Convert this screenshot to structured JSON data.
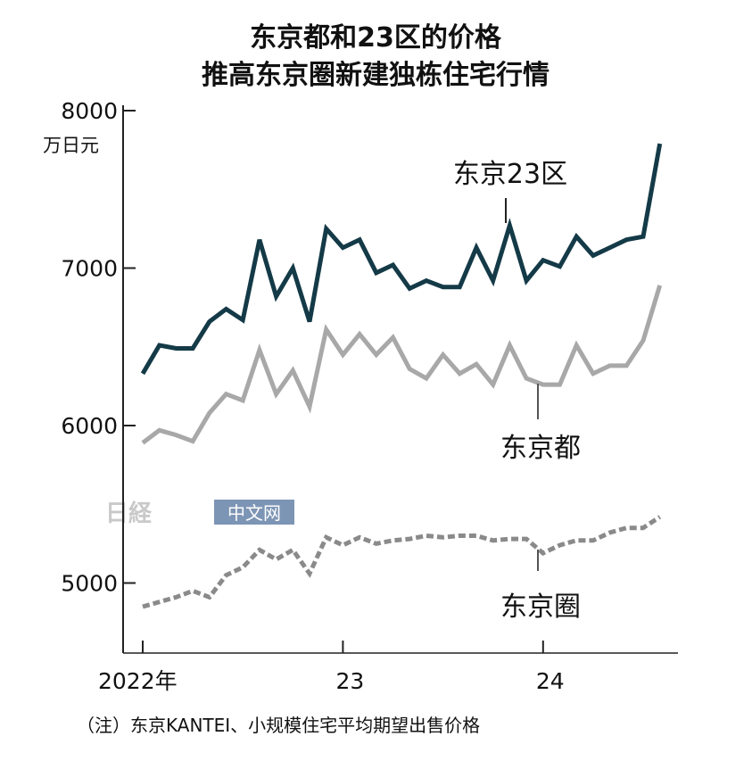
{
  "chart_data": {
    "type": "line",
    "title_lines": [
      "东京都和23区的价格",
      "推高东京圈新建独栋住宅行情"
    ],
    "y_unit": "万日元",
    "ylim": [
      4600,
      8100
    ],
    "y_ticks": [
      5000,
      6000,
      7000,
      8000
    ],
    "y_tick_labels": [
      "5000",
      "6000",
      "7000",
      "8000"
    ],
    "x_tick_labels": [
      "2022年",
      "23",
      "24"
    ],
    "x_tick_index": [
      0,
      12,
      24
    ],
    "grid": false,
    "series": [
      {
        "name": "东京23区",
        "color": "#143a47",
        "dash": "solid",
        "values": [
          6330,
          6510,
          6490,
          6490,
          6660,
          6740,
          6670,
          7180,
          6820,
          7000,
          6660,
          7250,
          7130,
          7180,
          6970,
          7020,
          6870,
          6920,
          6880,
          6880,
          7130,
          6920,
          7270,
          6920,
          7050,
          7010,
          7200,
          7080,
          7130,
          7180,
          7200,
          7790
        ]
      },
      {
        "name": "东京都",
        "color": "#a8a8a8",
        "dash": "solid",
        "values": [
          5890,
          5970,
          5940,
          5900,
          6080,
          6200,
          6160,
          6480,
          6200,
          6350,
          6120,
          6610,
          6450,
          6580,
          6450,
          6560,
          6360,
          6300,
          6450,
          6330,
          6390,
          6260,
          6510,
          6300,
          6260,
          6260,
          6510,
          6330,
          6380,
          6380,
          6540,
          6890
        ]
      },
      {
        "name": "东京圈",
        "color": "#8a8a8a",
        "dash": "dotted",
        "values": [
          4850,
          4880,
          4910,
          4950,
          4910,
          5050,
          5100,
          5210,
          5150,
          5210,
          5060,
          5290,
          5240,
          5290,
          5250,
          5270,
          5280,
          5300,
          5290,
          5300,
          5300,
          5270,
          5280,
          5280,
          5190,
          5240,
          5270,
          5270,
          5320,
          5350,
          5350,
          5420
        ]
      }
    ],
    "note": "（注）东京KANTEI、小规模住宅平均期望出售价格",
    "watermark": {
      "logo": "日経",
      "text": "中文网"
    }
  }
}
